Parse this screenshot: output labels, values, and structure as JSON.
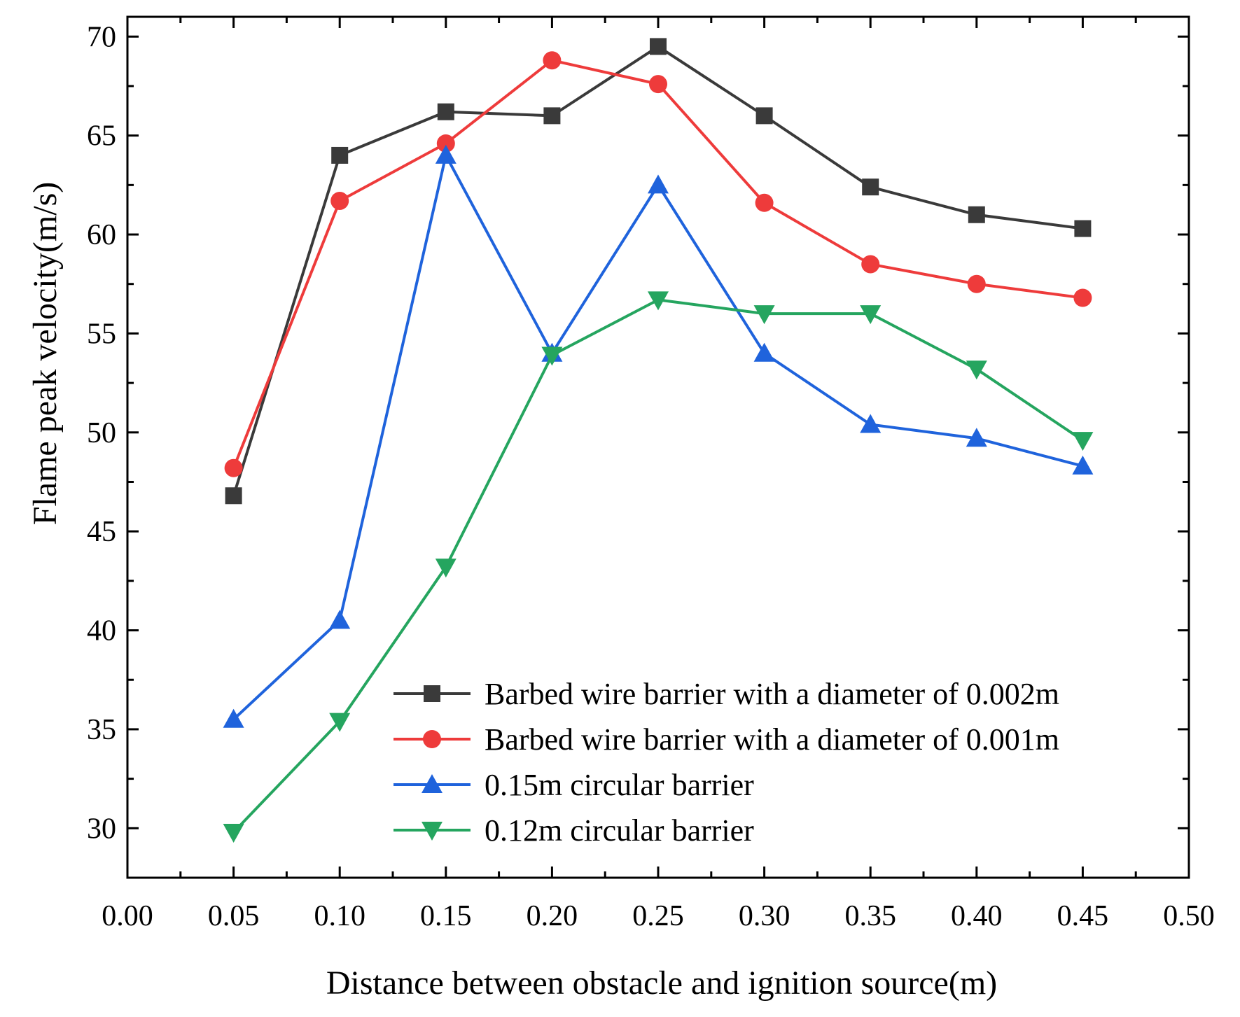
{
  "chart_data": {
    "type": "line",
    "title": "",
    "xlabel": "Distance between obstacle and ignition source(m)",
    "ylabel": "Flame peak velocity(m/s)",
    "xlim": [
      0.0,
      0.5
    ],
    "ylim": [
      27.5,
      71.0
    ],
    "x_ticks": [
      0.0,
      0.05,
      0.1,
      0.15,
      0.2,
      0.25,
      0.3,
      0.35,
      0.4,
      0.45,
      0.5
    ],
    "x_tick_labels": [
      "0.00",
      "0.05",
      "0.10",
      "0.15",
      "0.20",
      "0.25",
      "0.30",
      "0.35",
      "0.40",
      "0.45",
      "0.50"
    ],
    "y_ticks": [
      30,
      35,
      40,
      45,
      50,
      55,
      60,
      65,
      70
    ],
    "y_tick_labels": [
      "30",
      "35",
      "40",
      "45",
      "50",
      "55",
      "60",
      "65",
      "70"
    ],
    "grid": false,
    "legend_position": "bottom-right",
    "x": [
      0.05,
      0.1,
      0.15,
      0.2,
      0.25,
      0.3,
      0.35,
      0.4,
      0.45
    ],
    "series": [
      {
        "name": "Barbed wire barrier with a diameter of 0.002m",
        "color": "#3a3a3a",
        "marker": "square",
        "values": [
          46.8,
          64.0,
          66.2,
          66.0,
          69.5,
          66.0,
          62.4,
          61.0,
          60.3
        ]
      },
      {
        "name": "Barbed wire barrier with a diameter of 0.001m",
        "color": "#ee3b3b",
        "marker": "circle",
        "values": [
          48.2,
          61.7,
          64.6,
          68.8,
          67.6,
          61.6,
          58.5,
          57.5,
          56.8
        ]
      },
      {
        "name": "0.15m circular barrier",
        "color": "#1f63dc",
        "marker": "triangle-up",
        "values": [
          35.5,
          40.5,
          64.0,
          54.0,
          62.5,
          54.0,
          50.4,
          49.7,
          48.3
        ]
      },
      {
        "name": "0.12m circular barrier",
        "color": "#25a55f",
        "marker": "triangle-down",
        "values": [
          29.8,
          35.4,
          43.2,
          53.9,
          56.7,
          56.0,
          56.0,
          53.2,
          49.6
        ]
      }
    ]
  }
}
